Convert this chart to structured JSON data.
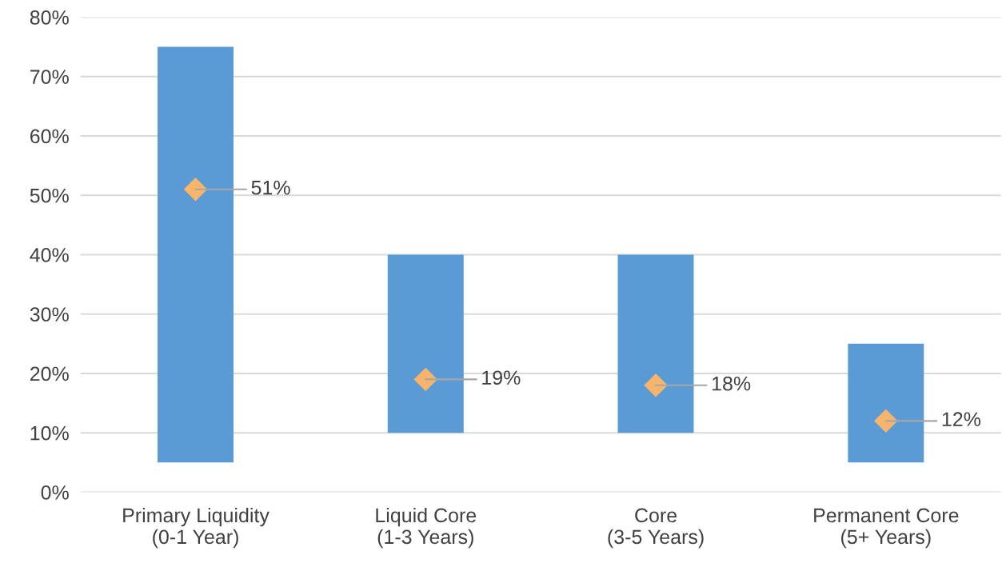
{
  "chart_data": {
    "type": "bar",
    "categories": [
      "Primary Liquidity\n(0-1 Year)",
      "Liquid Core\n(1-3 Years)",
      "Core\n(3-5 Years)",
      "Permanent Core\n(5+ Years)"
    ],
    "series": [
      {
        "color": "#5b9bd5",
        "values": [
          70,
          30,
          30,
          20
        ],
        "base": [
          5,
          10,
          10,
          5
        ]
      },
      {
        "type": "scatter",
        "color": "#f8b46a",
        "marker": "diamond",
        "values": [
          51,
          19,
          18,
          12
        ],
        "value_labels": [
          "51%",
          "19%",
          "18%",
          "12%"
        ]
      }
    ],
    "ylim": [
      0,
      80
    ],
    "yticks": [
      {
        "value": 0,
        "label": "0%"
      },
      {
        "value": 10,
        "label": "10%"
      },
      {
        "value": 20,
        "label": "20%"
      },
      {
        "value": 30,
        "label": "30%"
      },
      {
        "value": 40,
        "label": "40%"
      },
      {
        "value": 50,
        "label": "50%"
      },
      {
        "value": 60,
        "label": "60%"
      },
      {
        "value": 70,
        "label": "70%"
      },
      {
        "value": 80,
        "label": "80%"
      }
    ],
    "grid": "y"
  }
}
